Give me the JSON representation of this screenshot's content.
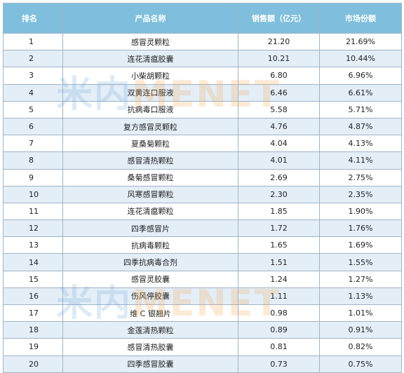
{
  "table": {
    "headers": {
      "rank": "排名",
      "product": "产品名称",
      "sales": "销售额（亿元）",
      "share": "市场份额"
    },
    "rows": [
      {
        "rank": "1",
        "product": "感冒灵颗粒",
        "sales": "21.20",
        "share": "21.69%"
      },
      {
        "rank": "2",
        "product": "连花清瘟胶囊",
        "sales": "10.21",
        "share": "10.44%"
      },
      {
        "rank": "3",
        "product": "小柴胡颗粒",
        "sales": "6.80",
        "share": "6.96%"
      },
      {
        "rank": "4",
        "product": "双黄连口服液",
        "sales": "6.46",
        "share": "6.61%"
      },
      {
        "rank": "5",
        "product": "抗病毒口服液",
        "sales": "5.58",
        "share": "5.71%"
      },
      {
        "rank": "6",
        "product": "复方感冒灵颗粒",
        "sales": "4.76",
        "share": "4.87%"
      },
      {
        "rank": "7",
        "product": "夏桑菊颗粒",
        "sales": "4.04",
        "share": "4.13%"
      },
      {
        "rank": "8",
        "product": "感冒清热颗粒",
        "sales": "4.01",
        "share": "4.11%"
      },
      {
        "rank": "9",
        "product": "桑菊感冒颗粒",
        "sales": "2.69",
        "share": "2.75%"
      },
      {
        "rank": "10",
        "product": "风寒感冒颗粒",
        "sales": "2.30",
        "share": "2.35%"
      },
      {
        "rank": "11",
        "product": "连花清瘟颗粒",
        "sales": "1.85",
        "share": "1.90%"
      },
      {
        "rank": "12",
        "product": "四季感冒片",
        "sales": "1.72",
        "share": "1.76%"
      },
      {
        "rank": "13",
        "product": "抗病毒颗粒",
        "sales": "1.65",
        "share": "1.69%"
      },
      {
        "rank": "14",
        "product": "四季抗病毒合剂",
        "sales": "1.51",
        "share": "1.55%"
      },
      {
        "rank": "15",
        "product": "感冒灵胶囊",
        "sales": "1.24",
        "share": "1.27%"
      },
      {
        "rank": "16",
        "product": "伤风停胶囊",
        "sales": "1.11",
        "share": "1.13%"
      },
      {
        "rank": "17",
        "product": "维 C 银翘片",
        "sales": "0.98",
        "share": "1.01%"
      },
      {
        "rank": "18",
        "product": "金莲清热颗粒",
        "sales": "0.89",
        "share": "0.91%"
      },
      {
        "rank": "19",
        "product": "感冒清热胶囊",
        "sales": "0.81",
        "share": "0.82%"
      },
      {
        "rank": "20",
        "product": "四季感冒胶囊",
        "sales": "0.73",
        "share": "0.75%"
      }
    ]
  },
  "watermark": {
    "part_a": "米内",
    "part_b": "MENET"
  }
}
